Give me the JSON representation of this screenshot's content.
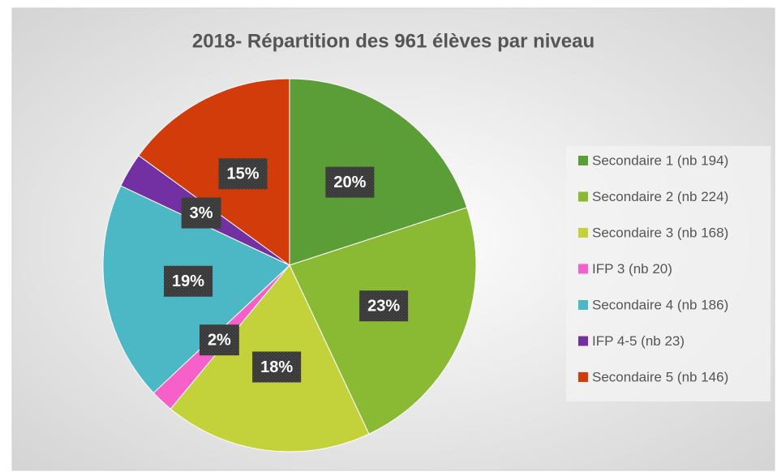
{
  "chart_data": {
    "type": "pie",
    "title": "2018- Répartition des 961 élèves par niveau",
    "categories": [
      "Secondaire 1 (nb 194)",
      "Secondaire 2 (nb 224)",
      "Secondaire 3  (nb 168)",
      "IFP 3 (nb 20)",
      "Secondaire 4 (nb 186)",
      "IFP 4-5  (nb 23)",
      "Secondaire 5  (nb 146)"
    ],
    "values": [
      20,
      23,
      18,
      2,
      19,
      3,
      15
    ],
    "value_labels": [
      "20%",
      "23%",
      "18%",
      "2%",
      "19%",
      "3%",
      "15%"
    ],
    "colors": [
      "#5b9e38",
      "#8ab934",
      "#c3d13a",
      "#f560c9",
      "#4cb8c6",
      "#7330a2",
      "#d23c0b"
    ],
    "legend": "right"
  }
}
